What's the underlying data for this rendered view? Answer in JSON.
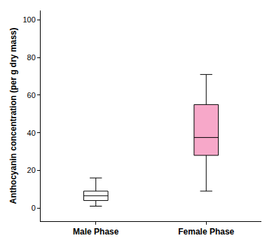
{
  "chart_data": {
    "type": "box",
    "y_label": "Anthocyanin concentration (per g dry mass)",
    "categories": [
      "Male Phase",
      "Female Phase"
    ],
    "boxes": [
      {
        "min": 1,
        "q1": 4,
        "median": 6.5,
        "q3": 9,
        "max": 16
      },
      {
        "min": 9,
        "q1": 28,
        "median": 37.5,
        "q3": 55,
        "max": 71
      }
    ],
    "colors": [
      "#ffffff",
      "#f7a8c9"
    ],
    "ylim": [
      -7,
      105
    ],
    "yticks": [
      0,
      20,
      40,
      60,
      80,
      100
    ],
    "grid": false
  }
}
